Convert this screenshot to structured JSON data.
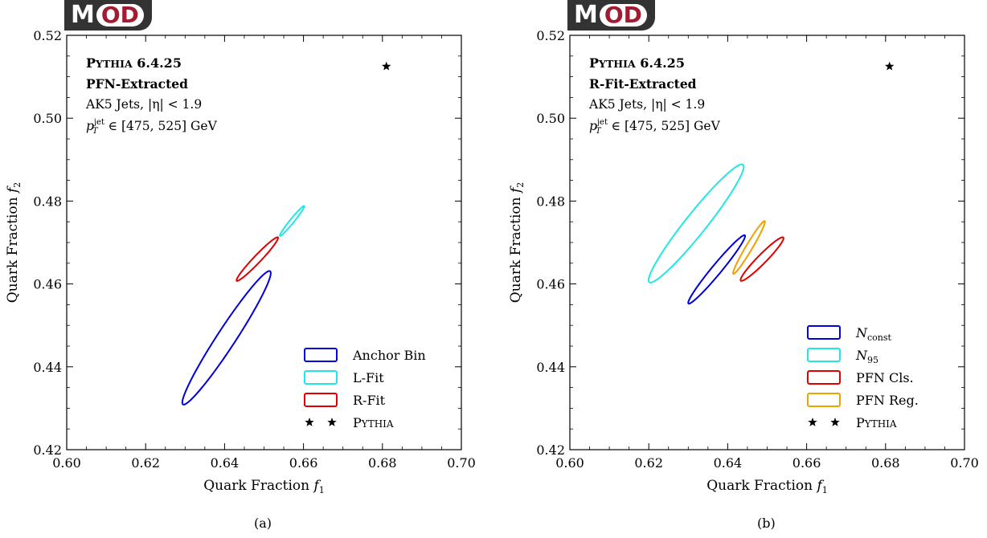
{
  "logo": {
    "part1": "M",
    "part2": "OD",
    "accent": "#a01c30",
    "bg": "#333333"
  },
  "captions": [
    "(a)",
    "(b)"
  ],
  "chart_data": [
    {
      "type": "scatter",
      "title": "",
      "xlabel": "Quark Fraction f1",
      "ylabel": "Quark Fraction f2",
      "xlim": [
        0.6,
        0.7
      ],
      "ylim": [
        0.42,
        0.52
      ],
      "xticks": [
        "0.60",
        "0.62",
        "0.64",
        "0.66",
        "0.68",
        "0.70"
      ],
      "yticks": [
        "0.42",
        "0.44",
        "0.46",
        "0.48",
        "0.50",
        "0.52"
      ],
      "annotations": [
        "Pythia 6.4.25",
        "PFN-Extracted",
        "AK5 Jets, |η| < 1.9",
        "p_T^jet ∈ [475, 525] GeV"
      ],
      "legend_position": "bottom-right",
      "series": [
        {
          "name": "Anchor Bin",
          "kind": "ellipse",
          "color": "#0000dd",
          "center": [
            0.6405,
            0.447
          ],
          "semi_axes": [
            0.0195,
            0.0023
          ],
          "angle_deg": 55.5
        },
        {
          "name": "L-Fit",
          "kind": "ellipse",
          "color": "#22e6e6",
          "center": [
            0.6571,
            0.4752
          ],
          "semi_axes": [
            0.00475,
            0.0005
          ],
          "angle_deg": 49.5
        },
        {
          "name": "R-Fit",
          "kind": "ellipse",
          "color": "#e00000",
          "center": [
            0.6483,
            0.466
          ],
          "semi_axes": [
            0.0074,
            0.0009
          ],
          "angle_deg": 45
        },
        {
          "name": "Pythia",
          "kind": "marker",
          "color": "#000000",
          "x": 0.681,
          "y": 0.5125
        }
      ]
    },
    {
      "type": "scatter",
      "title": "",
      "xlabel": "Quark Fraction f1",
      "ylabel": "Quark Fraction f2",
      "xlim": [
        0.6,
        0.7
      ],
      "ylim": [
        0.42,
        0.52
      ],
      "xticks": [
        "0.60",
        "0.62",
        "0.64",
        "0.66",
        "0.68",
        "0.70"
      ],
      "yticks": [
        "0.42",
        "0.44",
        "0.46",
        "0.48",
        "0.50",
        "0.52"
      ],
      "annotations": [
        "Pythia 6.4.25",
        "R-Fit-Extracted",
        "AK5 Jets, |η| < 1.9",
        "p_T^jet ∈ [475, 525] GeV"
      ],
      "legend_position": "bottom-right",
      "series": [
        {
          "name": "N_const",
          "kind": "ellipse",
          "color": "#0000dd",
          "center": [
            0.6372,
            0.4635
          ],
          "semi_axes": [
            0.0109,
            0.0012
          ],
          "angle_deg": 49
        },
        {
          "name": "N_95",
          "kind": "ellipse",
          "color": "#22e6e6",
          "center": [
            0.632,
            0.4746
          ],
          "semi_axes": [
            0.0185,
            0.0026
          ],
          "angle_deg": 50
        },
        {
          "name": "PFN Cls.",
          "kind": "ellipse",
          "color": "#e00000",
          "center": [
            0.6487,
            0.466
          ],
          "semi_axes": [
            0.0075,
            0.0011
          ],
          "angle_deg": 44
        },
        {
          "name": "PFN Reg.",
          "kind": "ellipse",
          "color": "#f0a000",
          "center": [
            0.6454,
            0.4688
          ],
          "semi_axes": [
            0.0075,
            0.0008
          ],
          "angle_deg": 58
        },
        {
          "name": "Pythia",
          "kind": "marker",
          "color": "#000000",
          "x": 0.681,
          "y": 0.5125
        }
      ]
    }
  ]
}
